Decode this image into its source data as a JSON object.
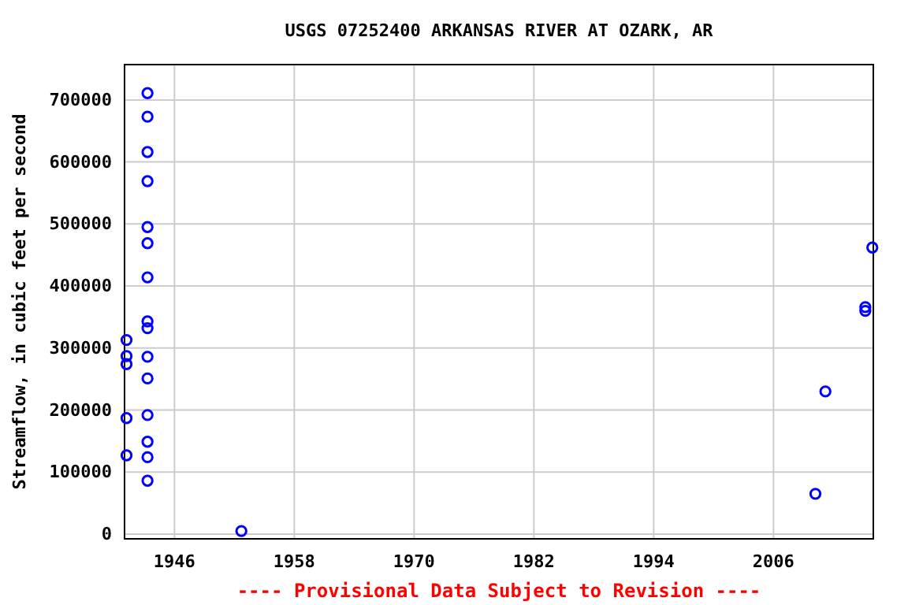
{
  "chart_data": {
    "type": "scatter",
    "title": "USGS 07252400 ARKANSAS RIVER AT OZARK, AR",
    "ylabel": "Streamflow, in cubic feet per second",
    "annotations": [
      "---- Provisional Data Subject to Revision ----"
    ],
    "x": [
      1941.2,
      1941.2,
      1941.2,
      1941.2,
      1941.2,
      1943.3,
      1943.3,
      1943.3,
      1943.3,
      1943.3,
      1943.3,
      1943.3,
      1943.3,
      1943.3,
      1943.3,
      1943.3,
      1943.3,
      1943.3,
      1943.3,
      1943.3,
      1952.7,
      2010.2,
      2011.2,
      2015.2,
      2015.2,
      2015.9
    ],
    "values": [
      313000,
      287000,
      274000,
      187000,
      127000,
      711000,
      673000,
      616000,
      569000,
      495000,
      469000,
      414000,
      343000,
      332000,
      286000,
      251000,
      192000,
      149000,
      124000,
      86000,
      5000,
      65000,
      230000,
      366000,
      360000,
      462000
    ],
    "color": "#0000ff",
    "marker": "circle",
    "grid": true,
    "xlim": [
      1941,
      2016
    ],
    "xticks": [
      1946,
      1958,
      1970,
      1982,
      1994,
      2006
    ],
    "ylim": [
      -7600,
      757000
    ],
    "yticks": [
      0,
      100000,
      200000,
      300000,
      400000,
      500000,
      600000,
      700000
    ]
  }
}
